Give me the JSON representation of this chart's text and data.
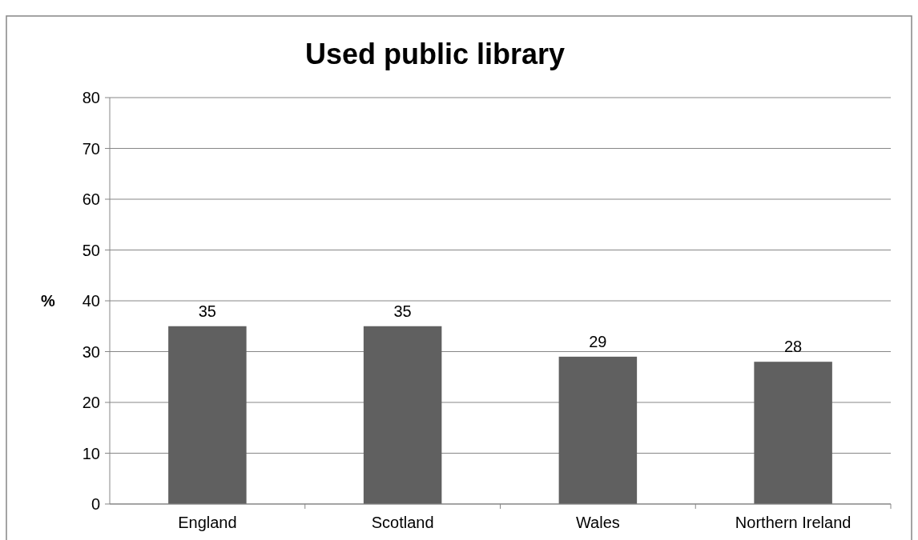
{
  "chart_data": {
    "type": "bar",
    "title": "Used public library",
    "ylabel": "%",
    "categories": [
      "England",
      "Scotland",
      "Wales",
      "Northern Ireland"
    ],
    "values": [
      35,
      35,
      29,
      28
    ],
    "color": "#606060",
    "ylim": [
      0,
      80
    ],
    "yticks": [
      0,
      10,
      20,
      30,
      40,
      50,
      60,
      70,
      80
    ],
    "grid": "y",
    "data_labels": true
  }
}
